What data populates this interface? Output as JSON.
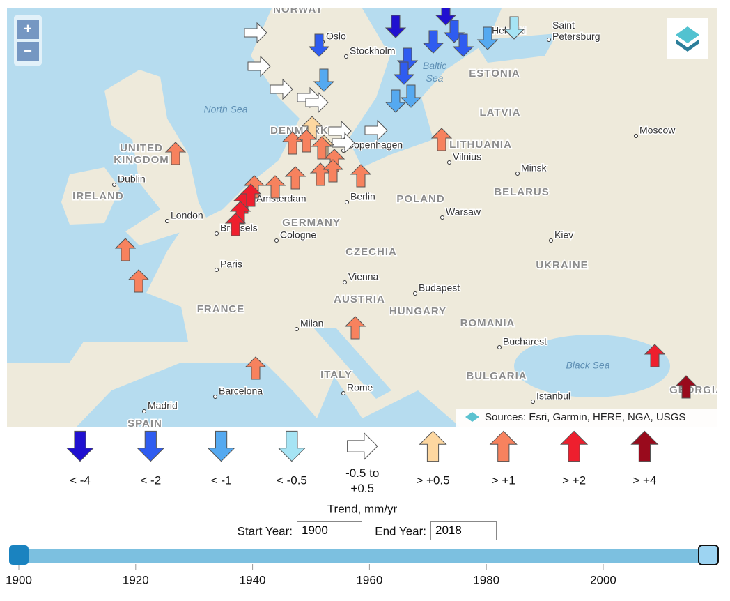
{
  "map": {
    "zoom_in": "+",
    "zoom_out": "−",
    "attribution": "Sources: Esri, Garmin, HERE, NGA, USGS",
    "countries": [
      "NORWAY",
      "ESTONIA",
      "LATVIA",
      "UNITED KINGDOM",
      "DENMARK",
      "LITHUANIA",
      "IRELAND",
      "BELARUS",
      "POLAND",
      "GERMANY",
      "CZECHIA",
      "UKRAINE",
      "AUSTRIA",
      "FRANCE",
      "HUNGARY",
      "ROMANIA",
      "ITALY",
      "BULGARIA",
      "SPAIN",
      "GEORGIA"
    ],
    "cities": [
      "Oslo",
      "Stockholm",
      "Helsinki",
      "Saint Petersburg",
      "Copenhagen",
      "Moscow",
      "Vilnius",
      "Minsk",
      "Dublin",
      "Berlin",
      "Amsterdam",
      "London",
      "Warsaw",
      "Brussels",
      "Cologne",
      "Kiev",
      "Paris",
      "Vienna",
      "Budapest",
      "Milan",
      "Bucharest",
      "Rome",
      "Barcelona",
      "Istanbul",
      "Madrid"
    ],
    "seas": [
      "North Sea",
      "Baltic Sea",
      "Black Sea"
    ]
  },
  "legend": {
    "title": "Trend, mm/yr",
    "items": [
      {
        "label": "< -4",
        "color": "#2010d0"
      },
      {
        "label": "< -2",
        "color": "#2f5cf0"
      },
      {
        "label": "< -1",
        "color": "#55a9f0"
      },
      {
        "label": "< -0.5",
        "color": "#a6e4f4"
      },
      {
        "label": "-0.5 to +0.5",
        "color": "#ffffff"
      },
      {
        "label": "> +0.5",
        "color": "#fdd7a0"
      },
      {
        "label": "> +1",
        "color": "#f7825e"
      },
      {
        "label": "> +2",
        "color": "#ee1f2e"
      },
      {
        "label": "> +4",
        "color": "#990a1c"
      }
    ]
  },
  "controls": {
    "start_label": "Start Year:",
    "start_value": 1900,
    "end_label": "End Year:",
    "end_value": 2018
  },
  "slider": {
    "xlim": [
      1900,
      2018
    ],
    "xticks": [
      1900,
      1920,
      1940,
      1960,
      1980,
      2000
    ]
  }
}
